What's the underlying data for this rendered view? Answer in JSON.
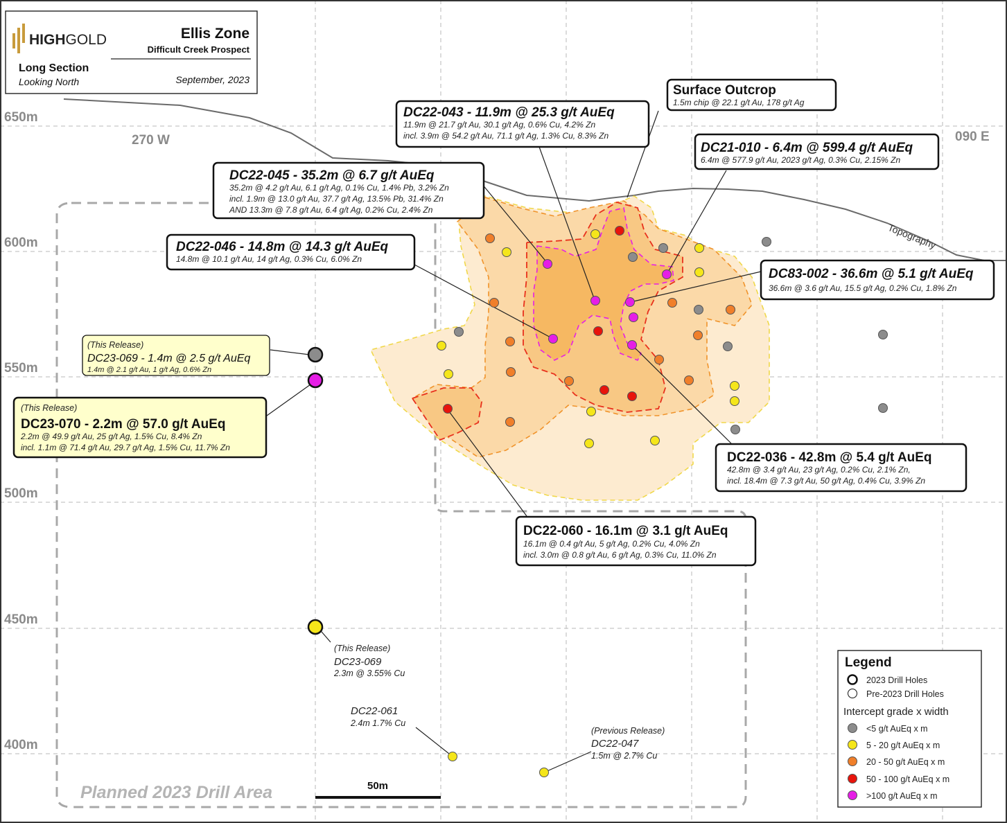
{
  "header": {
    "logo_bold": "HIGH",
    "logo_light": "GOLD",
    "zone": "Ellis Zone",
    "prospect": "Difficult Creek Prospect",
    "view": "Long Section",
    "orientation": "Looking North",
    "date": "September, 2023"
  },
  "elevations": [
    "650m",
    "600m",
    "550m",
    "500m",
    "450m",
    "400m"
  ],
  "directions": {
    "west": "270 W",
    "east": "090 E"
  },
  "topography_label": "Topography",
  "planned_area_label": "Planned 2023 Drill Area",
  "scale_bar": "50m",
  "callouts": {
    "surface": {
      "title": "Surface Outcrop",
      "lines": [
        "1.5m chip @ 22.1 g/t Au, 178 g/t Ag"
      ]
    },
    "dc22_043": {
      "title": "DC22-043 - 11.9m @ 25.3 g/t AuEq",
      "lines": [
        "11.9m @ 21.7 g/t Au, 30.1 g/t Ag, 0.6% Cu, 4.2% Zn",
        "incl. 3.9m @ 54.2 g/t Au, 71.1 g/t Ag, 1.3% Cu, 8.3% Zn"
      ]
    },
    "dc21_010": {
      "title": "DC21-010 - 6.4m @ 599.4 g/t AuEq",
      "lines": [
        "6.4m @ 577.9 g/t Au, 2023 g/t Ag, 0.3% Cu, 2.15% Zn"
      ]
    },
    "dc22_045": {
      "title": "DC22-045 - 35.2m @ 6.7 g/t AuEq",
      "lines": [
        "35.2m @ 4.2 g/t Au, 6.1 g/t Ag, 0.1% Cu, 1.4% Pb, 3.2% Zn",
        "incl. 1.9m @ 13.0 g/t Au, 37.7 g/t Ag, 13.5% Pb, 31.4% Zn",
        "AND 13.3m @ 7.8 g/t Au, 6.4 g/t Ag, 0.2% Cu, 2.4% Zn"
      ]
    },
    "dc22_046": {
      "title": "DC22-046 - 14.8m @ 14.3 g/t AuEq",
      "lines": [
        "14.8m @ 10.1 g/t Au, 14 g/t Ag, 0.3% Cu, 6.0% Zn"
      ]
    },
    "dc83_002": {
      "title": "DC83-002 - 36.6m @ 5.1 g/t AuEq",
      "lines": [
        "36.6m @ 3.6 g/t Au, 15.5 g/t Ag, 0.2% Cu, 1.8% Zn"
      ]
    },
    "dc22_036": {
      "title": "DC22-036 - 42.8m @ 5.4 g/t AuEq",
      "lines": [
        "42.8m @ 3.4 g/t Au, 23 g/t Ag, 0.2% Cu, 2.1% Zn,",
        "incl. 18.4m @ 7.3 g/t Au, 50 g/t Ag, 0.4% Cu, 3.9% Zn"
      ]
    },
    "dc22_060": {
      "title": "DC22-060 - 16.1m @ 3.1 g/t AuEq",
      "lines": [
        "16.1m @ 0.4 g/t Au, 5 g/t Ag, 0.2% Cu, 4.0% Zn",
        "incl. 3.0m @ 0.8 g/t Au, 6 g/t Ag, 0.3% Cu, 11.0% Zn"
      ]
    },
    "dc23_069a": {
      "tag": "(This Release)",
      "title": "DC23-069 - 1.4m @ 2.5 g/t AuEq",
      "lines": [
        "1.4m @ 2.1 g/t Au, 1 g/t Ag, 0.6% Zn"
      ]
    },
    "dc23_070": {
      "tag": "(This Release)",
      "title": "DC23-070 - 2.2m @ 57.0 g/t AuEq",
      "lines": [
        "2.2m @ 49.9 g/t Au, 25 g/t Ag, 1.5% Cu, 8.4% Zn",
        "incl. 1.1m @ 71.4 g/t Au, 29.7 g/t Ag, 1.5% Cu, 11.7% Zn"
      ]
    }
  },
  "labels": {
    "dc23_069b": {
      "tag": "(This Release)",
      "title": "DC23-069",
      "line": "2.3m @ 3.55% Cu"
    },
    "dc22_061": {
      "title": "DC22-061",
      "line": "2.4m 1.7% Cu"
    },
    "dc22_047": {
      "tag": "(Previous Release)",
      "title": "DC22-047",
      "line": "1.5m @ 2.7% Cu"
    }
  },
  "legend": {
    "title": "Legend",
    "hole_2023": "2023 Drill Holes",
    "hole_pre": "Pre-2023 Drill Holes",
    "grade_title": "Intercept grade x width",
    "classes": [
      {
        "label": "<5 g/t AuEq x m",
        "color": "#8c8c8c"
      },
      {
        "label": "5 - 20 g/t AuEq x m",
        "color": "#f5e61a"
      },
      {
        "label": "20 - 50 g/t AuEq x m",
        "color": "#f07f2a"
      },
      {
        "label": "50 - 100 g/t AuEq x m",
        "color": "#e8140c"
      },
      {
        "label": ">100 g/t AuEq x m",
        "color": "#e61ee6"
      }
    ]
  },
  "colors": {
    "grey": "#8c8c8c",
    "yellow": "#f5e61a",
    "orange": "#f07f2a",
    "red": "#e8140c",
    "magenta": "#e61ee6",
    "shell_outer": "#fdebd0",
    "shell_mid": "#fbd9a8",
    "shell_inner": "#f8c884"
  }
}
